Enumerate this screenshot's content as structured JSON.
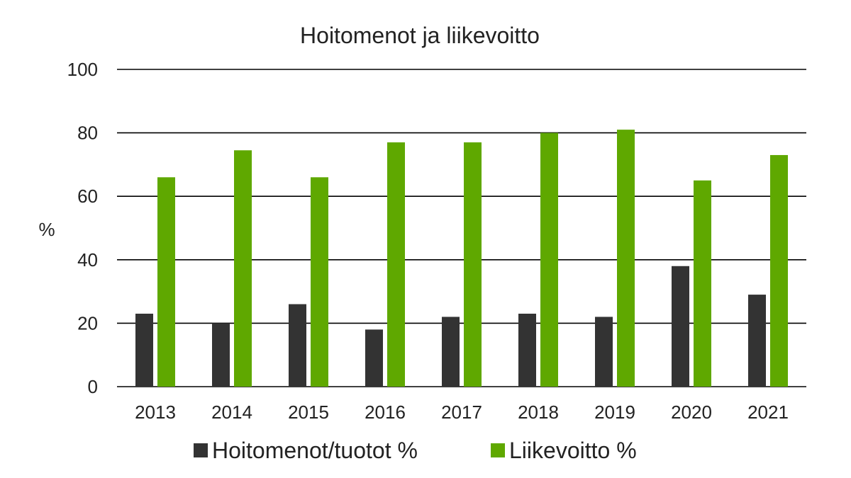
{
  "chart_data": {
    "type": "bar",
    "title": "Hoitomenot ja liikevoitto",
    "xlabel": "",
    "ylabel": "%",
    "ylim": [
      0,
      100
    ],
    "yticks": [
      "0",
      "20",
      "40",
      "60",
      "80",
      "100"
    ],
    "grid": true,
    "legend_position": "bottom",
    "categories": [
      "2013",
      "2014",
      "2015",
      "2016",
      "2017",
      "2018",
      "2019",
      "2020",
      "2021"
    ],
    "series": [
      {
        "name": "Hoitomenot/tuotot %",
        "color": "#333333",
        "values": [
          23,
          20,
          26,
          18,
          22,
          23,
          22,
          38,
          29
        ]
      },
      {
        "name": "Liikevoitto %",
        "color": "#5fa800",
        "values": [
          66,
          74.5,
          66,
          77,
          77,
          80,
          81,
          65,
          73
        ]
      }
    ]
  }
}
